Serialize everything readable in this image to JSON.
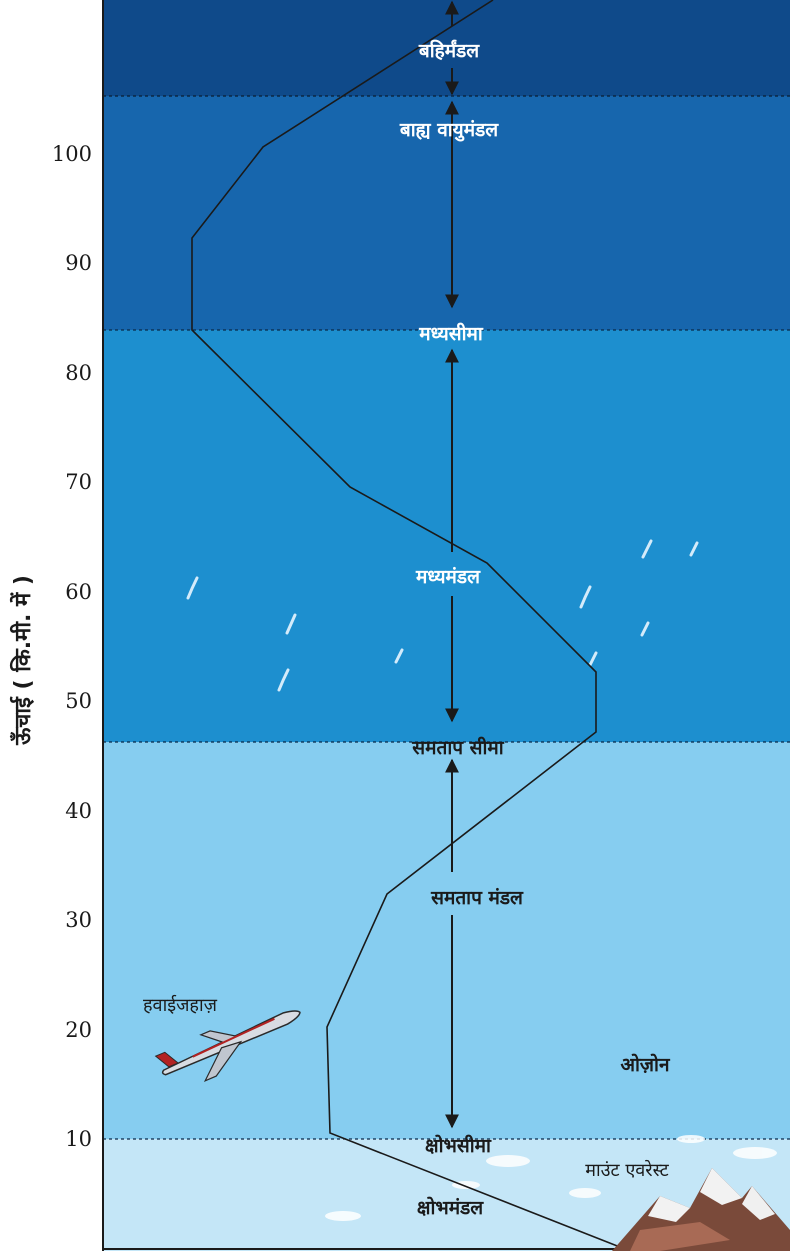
{
  "y_axis": {
    "label": "ऊँचाई ( कि.मी. में )",
    "ticks": [
      10,
      20,
      30,
      40,
      50,
      60,
      70,
      80,
      90,
      100
    ]
  },
  "layers": {
    "exosphere": "बहिर्मंडल",
    "thermosphere": "बाह्य वायुमंडल",
    "mesopause": "मध्यसीमा",
    "mesosphere": "मध्यमंडल",
    "stratopause": "समताप सीमा",
    "stratosphere": "समताप मंडल",
    "tropopause": "क्षोभसीमा",
    "troposphere": "क्षोभमंडल"
  },
  "objects": {
    "airplane": "हवाईजहाज़",
    "ozone": "ओज़ोन",
    "everest": "माउंट एवरेस्ट"
  },
  "colors": {
    "exosphere": "#0f4a8a",
    "thermosphere": "#1766ad",
    "mesosphere": "#1d8fcf",
    "stratosphere": "#86cdf0",
    "troposphere": "#c4e6f7"
  }
}
